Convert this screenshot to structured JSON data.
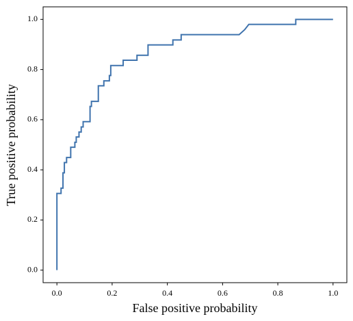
{
  "chart_data": {
    "type": "line",
    "xlabel": "False positive probability",
    "ylabel": "True positive probability",
    "series": [
      {
        "color": "#3f73ad",
        "x": [
          0,
          0,
          0.015,
          0.015,
          0.022,
          0.022,
          0.027,
          0.027,
          0.035,
          0.035,
          0.05,
          0.05,
          0.065,
          0.065,
          0.07,
          0.07,
          0.08,
          0.08,
          0.088,
          0.088,
          0.095,
          0.095,
          0.12,
          0.12,
          0.125,
          0.125,
          0.15,
          0.15,
          0.17,
          0.17,
          0.19,
          0.19,
          0.195,
          0.195,
          0.24,
          0.24,
          0.29,
          0.29,
          0.33,
          0.33,
          0.42,
          0.42,
          0.45,
          0.45,
          0.66,
          0.68,
          0.695,
          0.865,
          0.865,
          1.0
        ],
        "values": [
          0,
          0.306,
          0.306,
          0.327,
          0.327,
          0.388,
          0.388,
          0.429,
          0.429,
          0.449,
          0.449,
          0.49,
          0.49,
          0.51,
          0.51,
          0.531,
          0.531,
          0.551,
          0.551,
          0.571,
          0.571,
          0.592,
          0.592,
          0.653,
          0.653,
          0.673,
          0.673,
          0.735,
          0.735,
          0.755,
          0.755,
          0.776,
          0.776,
          0.816,
          0.816,
          0.837,
          0.837,
          0.857,
          0.857,
          0.898,
          0.898,
          0.918,
          0.918,
          0.939,
          0.939,
          0.959,
          0.98,
          0.98,
          1.0,
          1.0
        ]
      }
    ],
    "xlim": [
      -0.05,
      1.05
    ],
    "ylim": [
      -0.05,
      1.05
    ],
    "xticks": [
      {
        "value": 0,
        "label": "0.0"
      },
      0.2,
      0.4,
      0.6,
      0.8,
      {
        "value": 1,
        "label": "1.0"
      }
    ],
    "yticks": [
      {
        "value": 0,
        "label": "0.0"
      },
      0.2,
      0.4,
      0.6,
      0.8,
      {
        "value": 1,
        "label": "1.0"
      }
    ],
    "grid": false
  }
}
